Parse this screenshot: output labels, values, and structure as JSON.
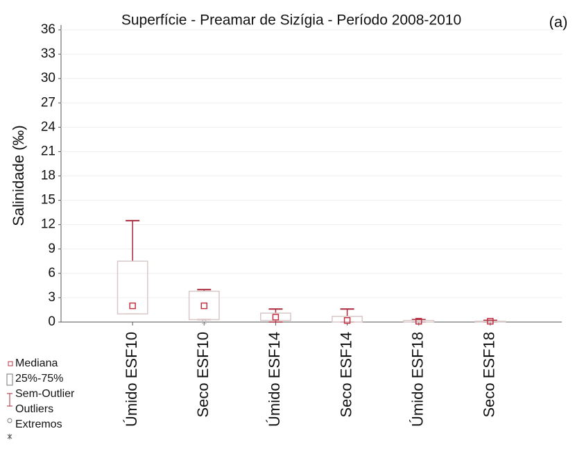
{
  "chart_data": {
    "type": "box",
    "title": "Superfície - Preamar de Sizígia - Período 2008-2010",
    "annotation": "(a)",
    "y_label": "Salinidade (‰)",
    "categories": [
      "Úmido ESF10",
      "Seco ESF10",
      "Úmido ESF14",
      "Seco ESF14",
      "Úmido ESF18",
      "Seco ESF18"
    ],
    "min": [
      1,
      0.3,
      0,
      0,
      0,
      0
    ],
    "q1": [
      1,
      0.3,
      0.2,
      0,
      0,
      0
    ],
    "median": [
      2,
      2,
      0.6,
      0.2,
      0.1,
      0.1
    ],
    "q3": [
      7.5,
      3.8,
      1.1,
      0.7,
      0.2,
      0.1
    ],
    "max": [
      12.5,
      4,
      1.6,
      1.6,
      0.3,
      0.2
    ],
    "outliers": [
      null,
      0,
      null,
      null,
      null,
      null
    ],
    "ylim": [
      0,
      36
    ],
    "yticks": [
      0,
      3,
      6,
      9,
      12,
      15,
      18,
      21,
      24,
      27,
      30,
      33,
      36
    ],
    "grid": true,
    "box_color": "#d8c8c8",
    "whisker_color": "#a8283c",
    "median_color": "#c03040",
    "legend": [
      "Mediana",
      "25%-75%",
      "Sem-Outlier",
      "Outliers",
      "Extremos"
    ]
  }
}
